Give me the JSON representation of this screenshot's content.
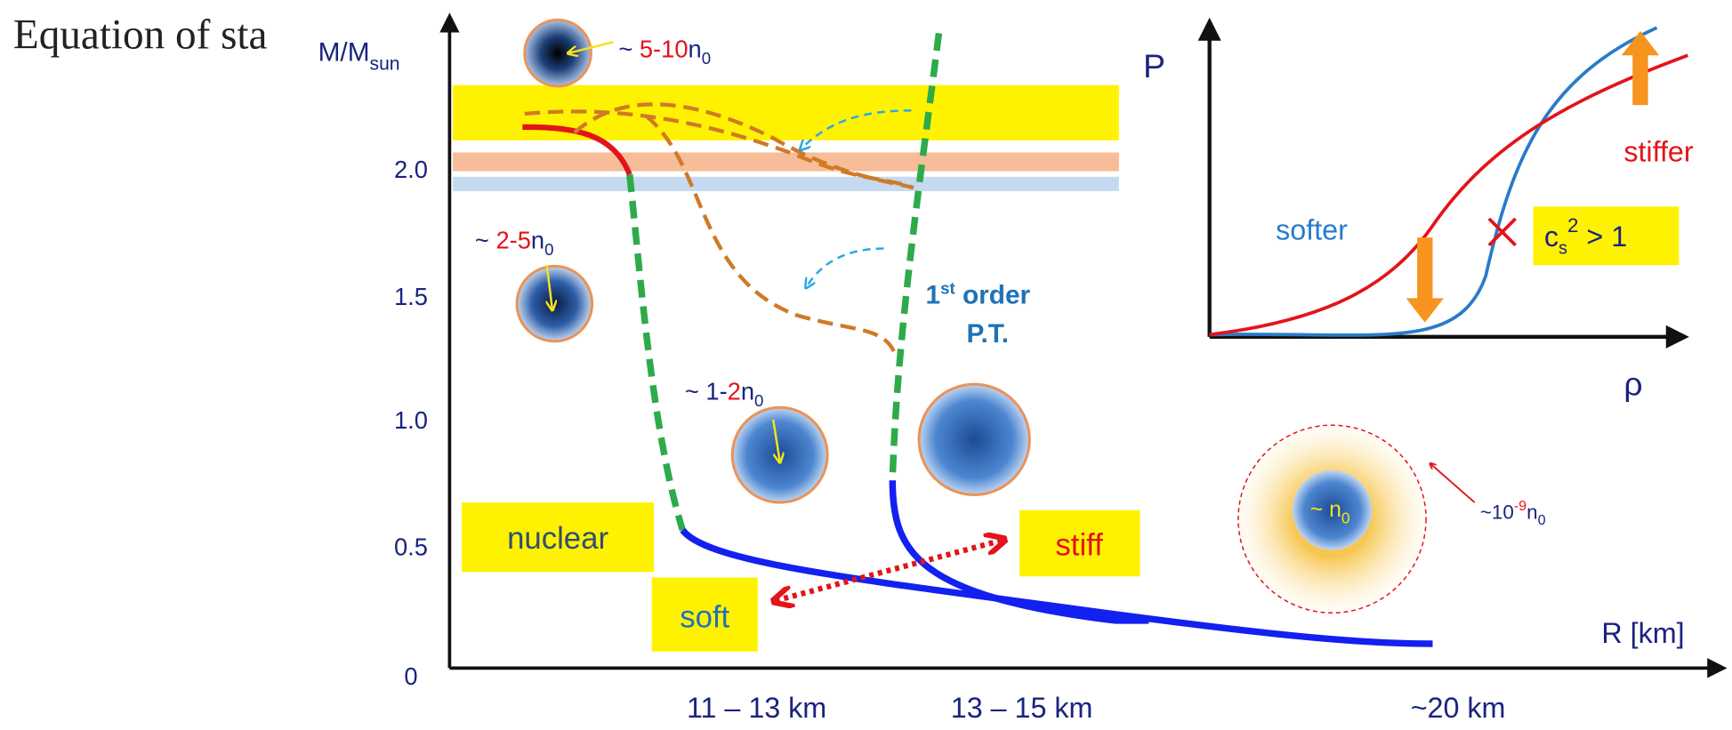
{
  "title": "Equation of sta",
  "main_axes": {
    "y_label": {
      "main": "M/M",
      "sub": "sun"
    },
    "y_ticks": [
      "0",
      "0.5",
      "1.0",
      "1.5",
      "2.0"
    ],
    "x_label": "R [km]",
    "x_ranges": [
      "11 – 13 km",
      "13 – 15 km",
      "~20 km"
    ]
  },
  "density_labels": [
    {
      "prefix": "~ ",
      "value": "5-10",
      "n": "n",
      "sub": "0"
    },
    {
      "prefix": "~ ",
      "value": "2-5",
      "n": "n",
      "sub": "0"
    },
    {
      "prefix": "~ 1-",
      "value": "2",
      "n": "n",
      "sub": "0"
    },
    {
      "prefix": "~ ",
      "n": "n",
      "sub": "0"
    },
    {
      "prefix": "~10",
      "sup": "-9",
      "n": "n",
      "sub": "0"
    }
  ],
  "phase_transition": {
    "line1": "1",
    "sup": "st",
    "rest": " order",
    "line2": "P.T."
  },
  "boxes": {
    "nuclear": "nuclear",
    "soft": "soft",
    "stiff": "stiff"
  },
  "inset": {
    "y_label": "P",
    "x_label": "ρ",
    "softer": "softer",
    "stiffer": "stiffer",
    "causality": {
      "c": "c",
      "sub": "s",
      "sup": "2",
      "rest": " > 1"
    }
  }
}
